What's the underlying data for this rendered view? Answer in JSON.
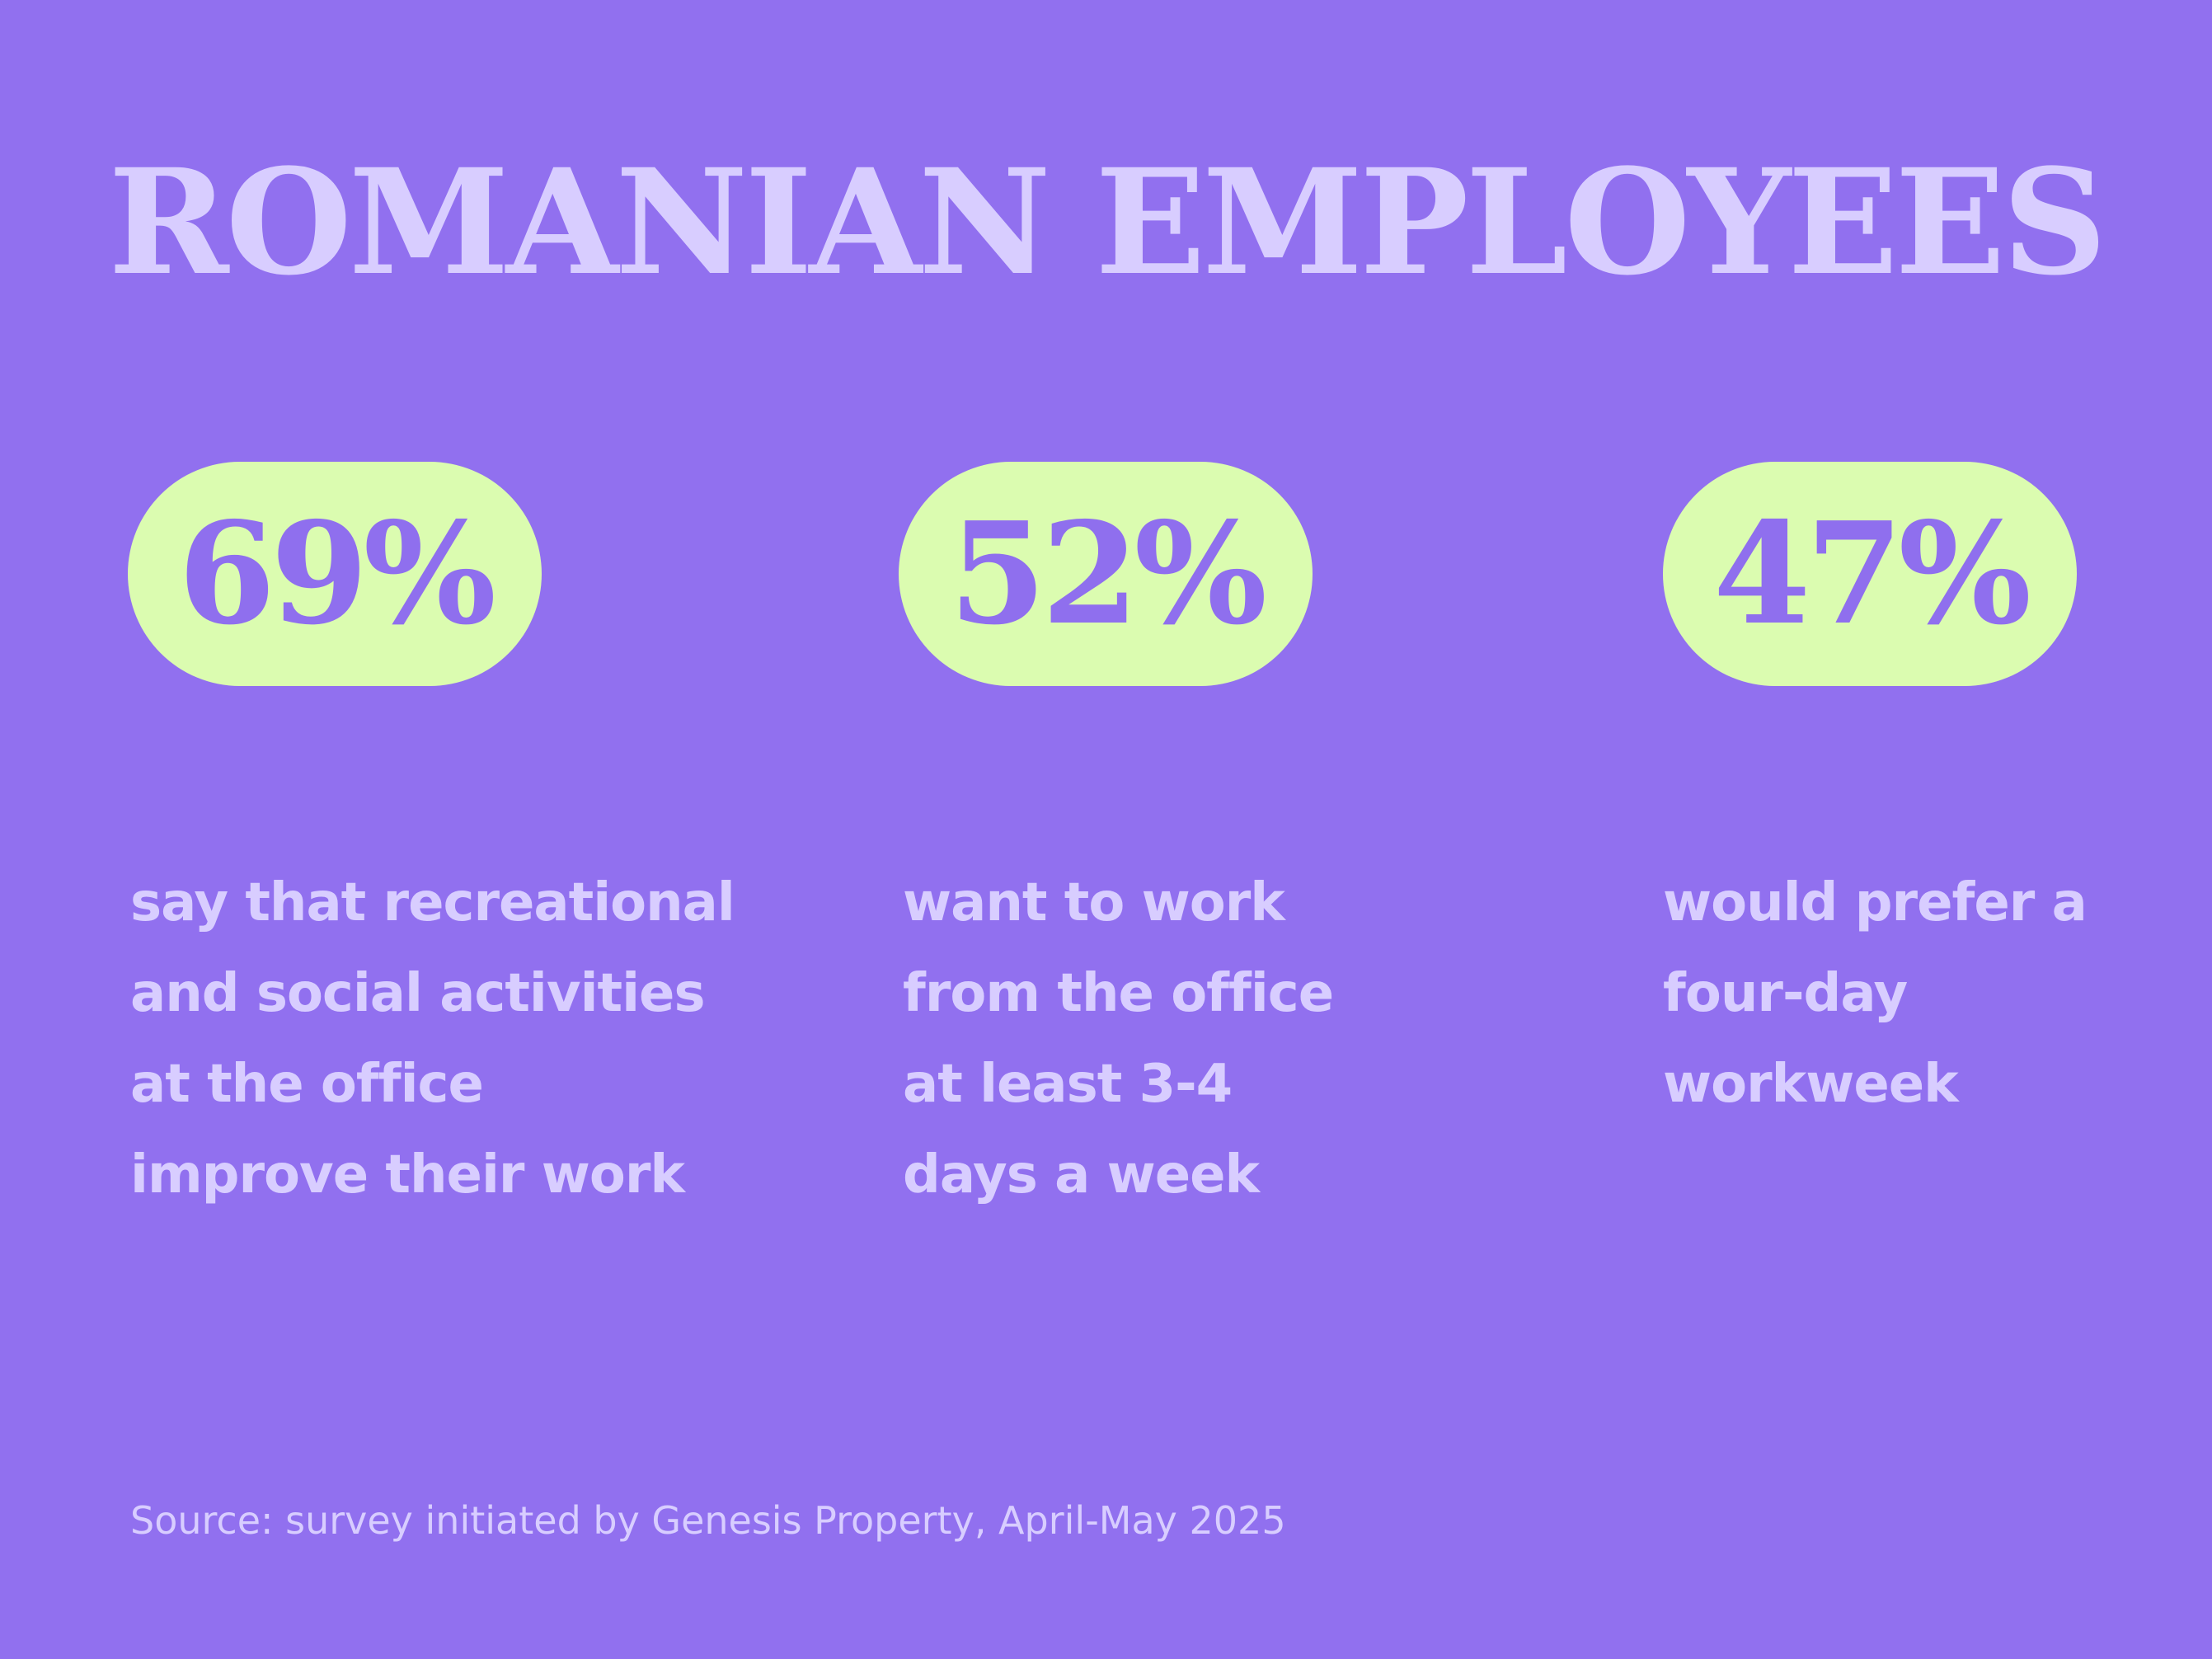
{
  "title": "ROMANIAN EMPLOYEES",
  "stats": [
    {
      "value": "69%",
      "lines": [
        "say that recreational",
        "and social activities",
        "at the office",
        "improve their work"
      ]
    },
    {
      "value": "52%",
      "lines": [
        "want to work",
        "from the office",
        "at least 3-4",
        "days a week"
      ]
    },
    {
      "value": "47%",
      "lines": [
        "would prefer a",
        "four-day",
        "workweek"
      ]
    }
  ],
  "source": "Source: survey initiated by Genesis Property, April-May 2025",
  "colors": {
    "background": "#9170ef",
    "accent_pill": "#dbfcb0",
    "text_light": "#d8cdff",
    "pill_text": "#8f6fee"
  }
}
